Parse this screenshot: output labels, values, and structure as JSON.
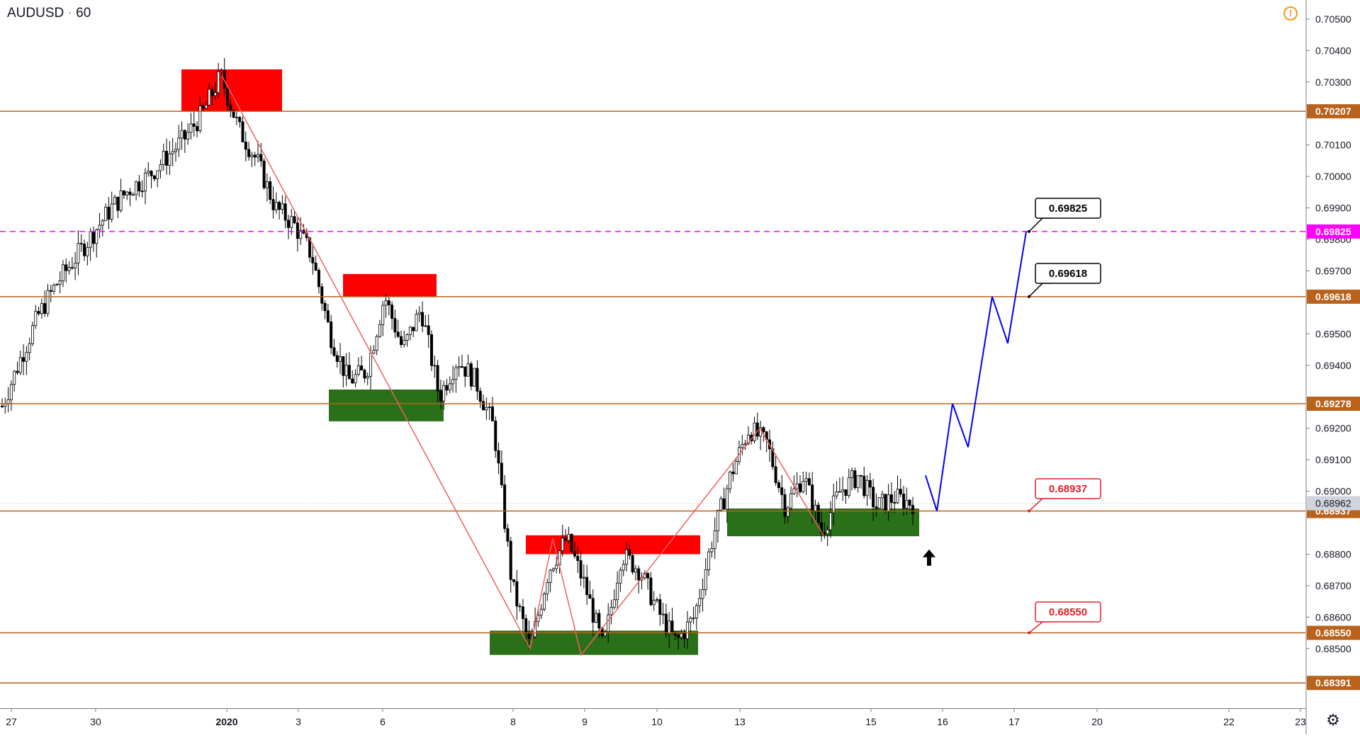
{
  "header": {
    "symbol": "AUDUSD",
    "separator": "·",
    "interval": "60"
  },
  "icons": {
    "alert": "alert-circle-icon",
    "settings": "gear-icon"
  },
  "colors": {
    "level_line": "#b8621b",
    "resistance_zone": "#ff0000",
    "support_zone": "#2a7019",
    "target_line": "#ff00ff",
    "projection": "#0000ff",
    "zigzag": "#f06060",
    "callout_red": "#e0202a",
    "callout_black": "#000000"
  },
  "chart_data": {
    "type": "candlestick",
    "symbol": "AUDUSD",
    "interval": "60",
    "ylim": [
      0.6827,
      0.7052
    ],
    "y_ticks": [
      "0.70500",
      "0.70400",
      "0.70300",
      "0.70100",
      "0.70000",
      "0.69900",
      "0.69800",
      "0.69700",
      "0.69500",
      "0.69400",
      "0.69200",
      "0.69100",
      "0.69000",
      "0.68800",
      "0.68700",
      "0.68600",
      "0.68500"
    ],
    "x_ticks": [
      {
        "label": "27",
        "bold": false
      },
      {
        "label": "30",
        "bold": false
      },
      {
        "label": "2020",
        "bold": true
      },
      {
        "label": "3",
        "bold": false
      },
      {
        "label": "6",
        "bold": false
      },
      {
        "label": "8",
        "bold": false
      },
      {
        "label": "9",
        "bold": false
      },
      {
        "label": "10",
        "bold": false
      },
      {
        "label": "13",
        "bold": false
      },
      {
        "label": "15",
        "bold": false
      },
      {
        "label": "16",
        "bold": false
      },
      {
        "label": "17",
        "bold": false
      },
      {
        "label": "20",
        "bold": false
      },
      {
        "label": "22",
        "bold": false
      },
      {
        "label": "23",
        "bold": false
      }
    ],
    "current_price": "0.68962",
    "horizontal_levels": [
      {
        "value": "0.70207",
        "style": "solid"
      },
      {
        "value": "0.69825",
        "style": "dashed"
      },
      {
        "value": "0.69618",
        "style": "solid"
      },
      {
        "value": "0.69278",
        "style": "solid"
      },
      {
        "value": "0.68937",
        "style": "solid"
      },
      {
        "value": "0.68550",
        "style": "solid"
      },
      {
        "value": "0.68391",
        "style": "solid"
      }
    ],
    "callouts": [
      {
        "value": "0.69825",
        "color": "black"
      },
      {
        "value": "0.69618",
        "color": "black"
      },
      {
        "value": "0.68937",
        "color": "red"
      },
      {
        "value": "0.68550",
        "color": "red"
      }
    ],
    "zones": [
      {
        "kind": "resistance",
        "from": 0.70207,
        "to": 0.7034
      },
      {
        "kind": "resistance",
        "from": 0.69618,
        "to": 0.6969
      },
      {
        "kind": "support",
        "from": 0.69222,
        "to": 0.69323
      },
      {
        "kind": "resistance",
        "from": 0.688,
        "to": 0.6886
      },
      {
        "kind": "support",
        "from": 0.6848,
        "to": 0.68557
      },
      {
        "kind": "support",
        "from": 0.68857,
        "to": 0.68945
      }
    ],
    "price_path": [
      0.6927,
      0.6942,
      0.6956,
      0.6966,
      0.6974,
      0.6982,
      0.699,
      0.6996,
      0.7,
      0.7006,
      0.7012,
      0.702,
      0.7032,
      0.7015,
      0.7005,
      0.699,
      0.6985,
      0.6975,
      0.695,
      0.6935,
      0.6938,
      0.6962,
      0.6945,
      0.6958,
      0.693,
      0.6942,
      0.6935,
      0.692,
      0.687,
      0.685,
      0.6875,
      0.6885,
      0.687,
      0.685,
      0.688,
      0.6875,
      0.6862,
      0.6852,
      0.686,
      0.6885,
      0.6905,
      0.692,
      0.6915,
      0.6895,
      0.6905,
      0.6887,
      0.69,
      0.6905,
      0.6895,
      0.6898,
      0.68962
    ],
    "zigzag": [
      0.7032,
      0.685,
      0.6885,
      0.6848,
      0.692,
      0.6886
    ],
    "projection": [
      0.6905,
      0.68937,
      0.69278,
      0.6914,
      0.69618,
      0.6947,
      0.69825
    ]
  }
}
